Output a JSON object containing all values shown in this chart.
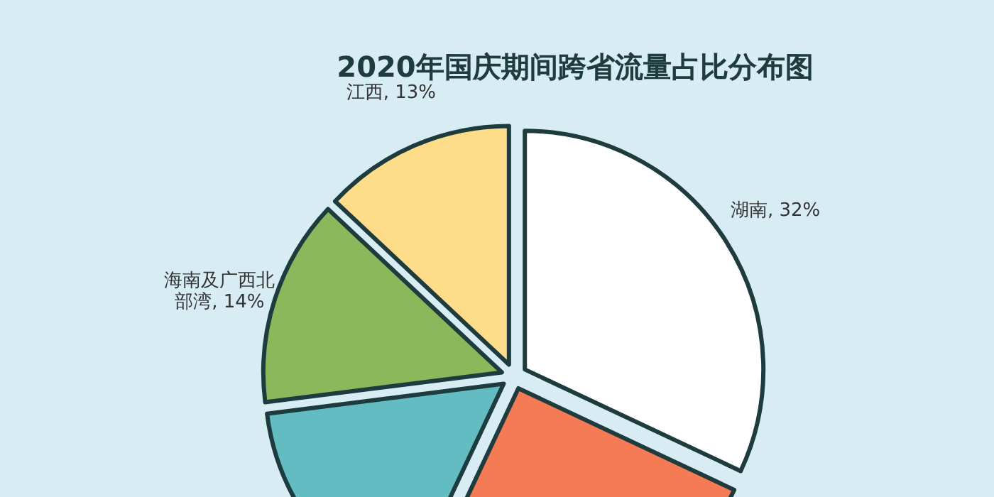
{
  "chart_data": {
    "type": "pie",
    "title": "2020年国庆期间跨省流量占比分布图",
    "categories": [
      "湖南",
      null,
      null,
      "海南及广西北部湾",
      "江西"
    ],
    "values": [
      32,
      25,
      16,
      14,
      13
    ],
    "value_labels": [
      "32%",
      null,
      null,
      "14%",
      "13%"
    ],
    "colors": [
      "#ffffff",
      "#f47b53",
      "#62bcc1",
      "#8cb85c",
      "#fddd8a"
    ]
  }
}
